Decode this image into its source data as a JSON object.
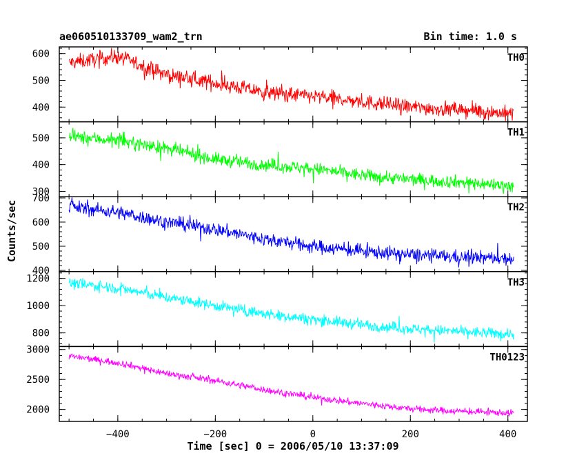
{
  "header": {
    "title": "ae060510133709_wam2_trn",
    "bin_time": "Bin time: 1.0 s"
  },
  "chart_data": {
    "type": "line",
    "title": "ae060510133709_wam2_trn",
    "xlabel": "Time [sec] 0 = 2006/05/10 13:37:09",
    "ylabel": "Counts/sec",
    "xlim": [
      -520,
      440
    ],
    "x_start": -500,
    "x_end": 412,
    "x_ticks": [
      -400,
      -200,
      0,
      200,
      400
    ],
    "x_tick_labels": [
      "−400",
      "−200",
      "0",
      "200",
      "400"
    ],
    "grid": false,
    "panels": [
      {
        "name": "TH0",
        "color": "#ff0000",
        "ylim": [
          345,
          625
        ],
        "y_ticks": [
          400,
          500,
          600
        ],
        "trend": [
          [
            -500,
            565
          ],
          [
            -400,
            590
          ],
          [
            -300,
            520
          ],
          [
            -200,
            490
          ],
          [
            -100,
            455
          ],
          [
            0,
            440
          ],
          [
            100,
            420
          ],
          [
            200,
            400
          ],
          [
            300,
            390
          ],
          [
            412,
            375
          ]
        ],
        "noise": 28
      },
      {
        "name": "TH1",
        "color": "#00ff00",
        "ylim": [
          280,
          560
        ],
        "y_ticks": [
          300,
          400,
          500
        ],
        "trend": [
          [
            -500,
            505
          ],
          [
            -400,
            490
          ],
          [
            -300,
            460
          ],
          [
            -200,
            420
          ],
          [
            -100,
            400
          ],
          [
            0,
            385
          ],
          [
            100,
            360
          ],
          [
            200,
            345
          ],
          [
            300,
            335
          ],
          [
            412,
            320
          ]
        ],
        "noise": 24
      },
      {
        "name": "TH2",
        "color": "#0000ff",
        "ylim": [
          395,
          705
        ],
        "y_ticks": [
          400,
          500,
          600,
          700
        ],
        "trend": [
          [
            -500,
            665
          ],
          [
            -400,
            640
          ],
          [
            -300,
            600
          ],
          [
            -200,
            570
          ],
          [
            -100,
            530
          ],
          [
            0,
            500
          ],
          [
            100,
            480
          ],
          [
            200,
            465
          ],
          [
            300,
            455
          ],
          [
            412,
            450
          ]
        ],
        "noise": 28
      },
      {
        "name": "TH3",
        "color": "#00ffff",
        "ylim": [
          700,
          1250
        ],
        "y_ticks": [
          800,
          1000,
          1200
        ],
        "trend": [
          [
            -500,
            1165
          ],
          [
            -400,
            1130
          ],
          [
            -300,
            1060
          ],
          [
            -200,
            1000
          ],
          [
            -100,
            940
          ],
          [
            0,
            900
          ],
          [
            100,
            860
          ],
          [
            200,
            830
          ],
          [
            300,
            810
          ],
          [
            412,
            790
          ]
        ],
        "noise": 40
      },
      {
        "name": "TH0123",
        "color": "#ff00ff",
        "ylim": [
          1800,
          3050
        ],
        "y_ticks": [
          2000,
          2500,
          3000
        ],
        "trend": [
          [
            -500,
            2890
          ],
          [
            -400,
            2780
          ],
          [
            -300,
            2600
          ],
          [
            -200,
            2480
          ],
          [
            -100,
            2330
          ],
          [
            0,
            2200
          ],
          [
            100,
            2100
          ],
          [
            200,
            2010
          ],
          [
            300,
            1970
          ],
          [
            412,
            1940
          ]
        ],
        "noise": 55
      }
    ]
  }
}
